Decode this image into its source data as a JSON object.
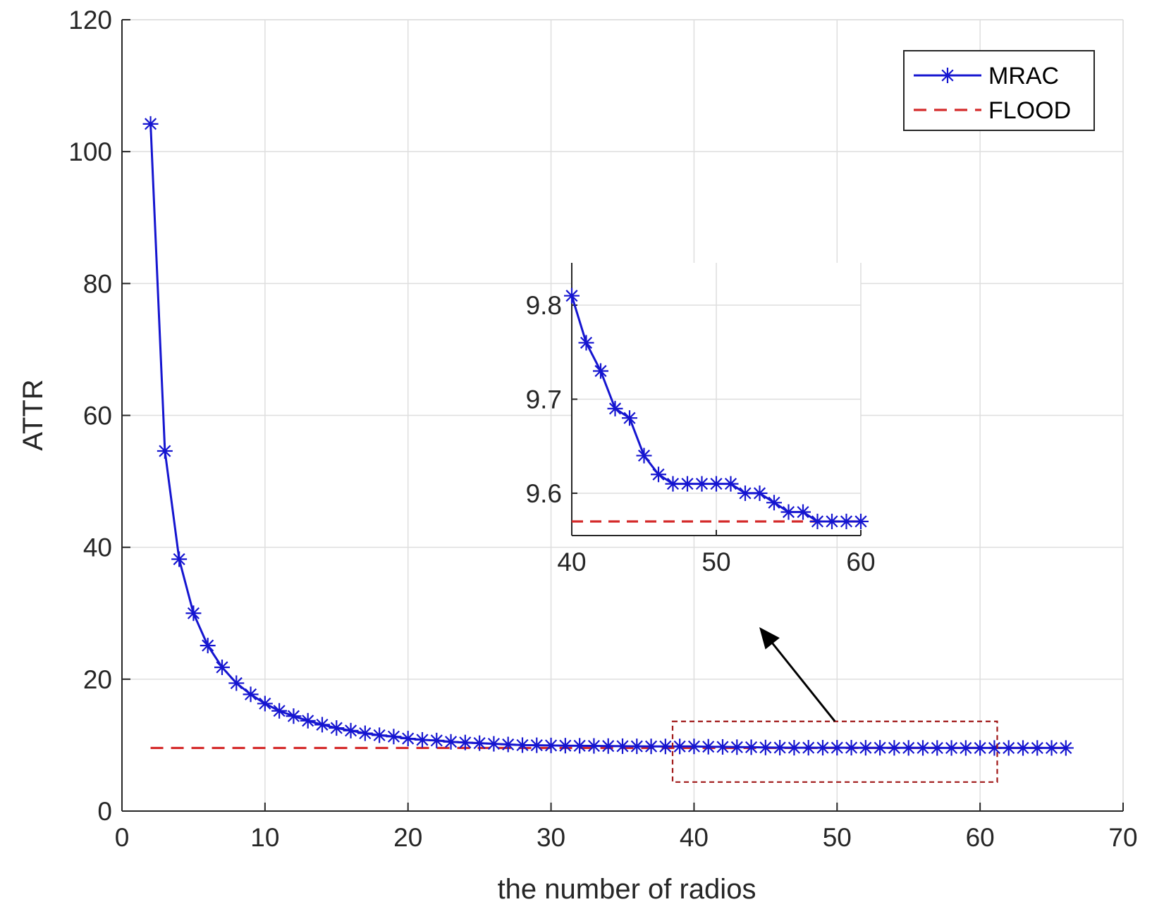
{
  "chart_data": {
    "type": "line",
    "title": "",
    "xlabel": "the number of radios",
    "ylabel": "ATTR",
    "xlim": [
      0,
      70
    ],
    "ylim": [
      0,
      120
    ],
    "xticks": [
      0,
      10,
      20,
      30,
      40,
      50,
      60,
      70
    ],
    "yticks": [
      0,
      20,
      40,
      60,
      80,
      100,
      120
    ],
    "grid": true,
    "legend_position": "top-right",
    "colors": {
      "mrac": "#1515d0",
      "flood": "#d42a2a",
      "axis": "#262626",
      "grid": "#dedede",
      "highlight_box": "#a01818",
      "arrow": "#000000"
    },
    "series": [
      {
        "name": "MRAC",
        "style": "solid-star",
        "x": [
          2,
          3,
          4,
          5,
          6,
          7,
          8,
          9,
          10,
          11,
          12,
          13,
          14,
          15,
          16,
          17,
          18,
          19,
          20,
          21,
          22,
          23,
          24,
          25,
          26,
          27,
          28,
          29,
          30,
          31,
          32,
          33,
          34,
          35,
          36,
          37,
          38,
          39,
          40,
          41,
          42,
          43,
          44,
          45,
          46,
          47,
          48,
          49,
          50,
          51,
          52,
          53,
          54,
          55,
          56,
          57,
          58,
          59,
          60,
          61,
          62,
          63,
          64,
          65,
          66
        ],
        "values": [
          104.2,
          54.6,
          38.2,
          30.0,
          25.1,
          21.8,
          19.4,
          17.7,
          16.3,
          15.2,
          14.4,
          13.7,
          13.1,
          12.6,
          12.2,
          11.8,
          11.5,
          11.3,
          11.0,
          10.8,
          10.7,
          10.5,
          10.4,
          10.3,
          10.2,
          10.1,
          10.0,
          9.98,
          9.95,
          9.92,
          9.9,
          9.88,
          9.86,
          9.84,
          9.82,
          9.81,
          9.8,
          9.8,
          9.81,
          9.76,
          9.73,
          9.69,
          9.68,
          9.64,
          9.62,
          9.61,
          9.61,
          9.61,
          9.61,
          9.61,
          9.6,
          9.6,
          9.59,
          9.58,
          9.58,
          9.57,
          9.57,
          9.57,
          9.57,
          9.57,
          9.57,
          9.57,
          9.57,
          9.57,
          9.57
        ]
      },
      {
        "name": "FLOOD",
        "style": "dashed",
        "x": [
          2,
          66
        ],
        "values": [
          9.57,
          9.57
        ]
      }
    ],
    "highlight_box": {
      "x_range": [
        38.5,
        61.2
      ],
      "y_range": [
        4.4,
        13.6
      ]
    },
    "inset": {
      "xlim": [
        40,
        60
      ],
      "ylim": [
        9.555,
        9.845
      ],
      "xticks": [
        40,
        50,
        60
      ],
      "yticks": [
        9.6,
        9.7,
        9.8
      ],
      "ytick_labels": [
        "9.6",
        "9.7",
        "9.8"
      ],
      "mrac_x": [
        40,
        41,
        42,
        43,
        44,
        45,
        46,
        47,
        48,
        49,
        50,
        51,
        52,
        53,
        54,
        55,
        56,
        57,
        58,
        59,
        60
      ],
      "mrac_values": [
        9.81,
        9.76,
        9.73,
        9.69,
        9.68,
        9.64,
        9.62,
        9.61,
        9.61,
        9.61,
        9.61,
        9.61,
        9.6,
        9.6,
        9.59,
        9.58,
        9.58,
        9.57,
        9.57,
        9.57,
        9.57
      ],
      "flood_value": 9.57
    }
  }
}
